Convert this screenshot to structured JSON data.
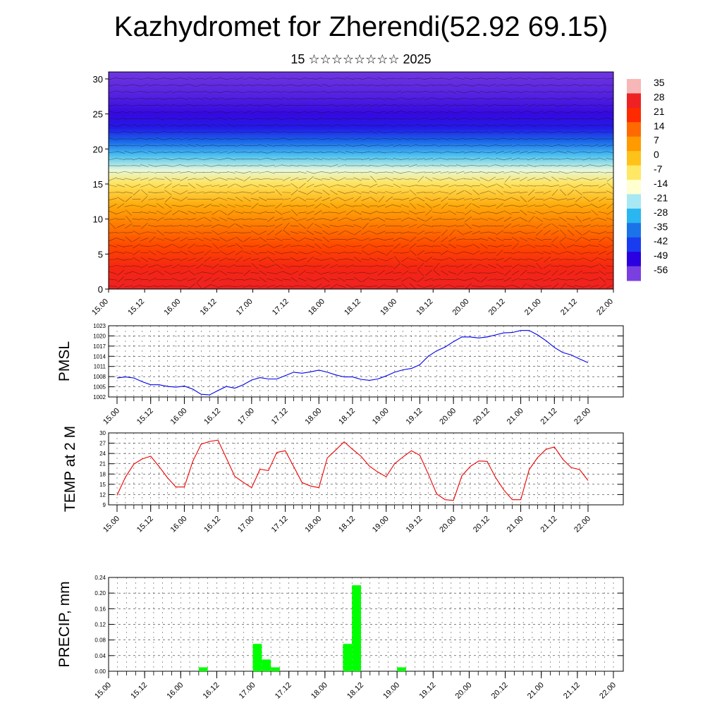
{
  "title": "Kazhydromet for Zherendi(52.92 69.15)",
  "subtitle": "15 ☆☆☆☆☆☆☆☆ 2025",
  "time_labels": [
    "15.00",
    "15.12",
    "16.00",
    "16.12",
    "17.00",
    "17.12",
    "18.00",
    "18.12",
    "19.00",
    "19.12",
    "20.00",
    "20.12",
    "21.00",
    "21.12",
    "22.00"
  ],
  "chart_data": [
    {
      "type": "heatmap",
      "description_free": true,
      "x_ticks": [
        "15.00",
        "15.12",
        "16.00",
        "16.12",
        "17.00",
        "17.12",
        "18.00",
        "18.12",
        "19.00",
        "19.12",
        "20.00",
        "20.12",
        "21.00",
        "21.12",
        "22.00"
      ],
      "y_ticks": [
        0,
        5,
        10,
        15,
        20,
        25,
        30
      ],
      "ylim": [
        0,
        31
      ],
      "colorbar_labels": [
        "35",
        "28",
        "21",
        "14",
        "7",
        "0",
        "-7",
        "-14",
        "-21",
        "-28",
        "-35",
        "-42",
        "-49",
        "-56"
      ],
      "colorbar_colors": [
        "#f7b7b7",
        "#ee2222",
        "#ff2a00",
        "#ff6a00",
        "#ff9a00",
        "#ffc21a",
        "#ffe866",
        "#ffffd0",
        "#a8e8f5",
        "#2ab6f0",
        "#1a73e8",
        "#1a3cf0",
        "#2a00e0",
        "#7a3fe0"
      ],
      "row_profile": [
        {
          "level": 0,
          "value": 28
        },
        {
          "level": 3,
          "value": 25
        },
        {
          "level": 6,
          "value": 18
        },
        {
          "level": 9,
          "value": 12
        },
        {
          "level": 12,
          "value": 4
        },
        {
          "level": 15,
          "value": -6
        },
        {
          "level": 17,
          "value": -16
        },
        {
          "level": 19,
          "value": -26
        },
        {
          "level": 21,
          "value": -36
        },
        {
          "level": 23,
          "value": -46
        },
        {
          "level": 25,
          "value": -50
        },
        {
          "level": 28,
          "value": -53
        },
        {
          "level": 31,
          "value": -55
        }
      ]
    },
    {
      "type": "line",
      "ylabel": "PMSL",
      "ylim": [
        1002,
        1023
      ],
      "y_ticks": [
        "1002",
        "1005",
        "1008",
        "1011",
        "1014",
        "1017",
        "1020",
        "1023"
      ],
      "x_ticks": [
        "15.00",
        "15.12",
        "16.00",
        "16.12",
        "17.00",
        "17.12",
        "18.00",
        "18.12",
        "19.00",
        "19.12",
        "20.00",
        "20.12",
        "21.00",
        "21.12",
        "22.00"
      ],
      "series": [
        {
          "color": "#0000ee",
          "x_step_hours": 3,
          "values": [
            1007.6,
            1007.9,
            1007.6,
            1006.5,
            1005.6,
            1005.6,
            1005.1,
            1004.9,
            1005.2,
            1004.3,
            1002.8,
            1002.6,
            1003.9,
            1005.1,
            1004.6,
            1005.6,
            1007.0,
            1007.7,
            1007.3,
            1007.3,
            1008.3,
            1009.3,
            1009.0,
            1009.4,
            1009.9,
            1009.3,
            1008.5,
            1007.9,
            1007.9,
            1007.2,
            1006.9,
            1007.3,
            1008.2,
            1009.3,
            1010.0,
            1010.4,
            1011.5,
            1014.0,
            1015.6,
            1016.7,
            1018.3,
            1019.7,
            1019.7,
            1019.4,
            1019.7,
            1020.3,
            1020.9,
            1021.0,
            1021.6,
            1021.6,
            1020.3,
            1018.6,
            1016.6,
            1015.1,
            1014.4,
            1013.2,
            1012.1
          ]
        }
      ]
    },
    {
      "type": "line",
      "ylabel": "TEMP at 2 M",
      "ylim": [
        9,
        30
      ],
      "y_ticks": [
        "9",
        "12",
        "15",
        "18",
        "21",
        "24",
        "27",
        "30"
      ],
      "x_ticks": [
        "15.00",
        "15.12",
        "16.00",
        "16.12",
        "17.00",
        "17.12",
        "18.00",
        "18.12",
        "19.00",
        "19.12",
        "20.00",
        "20.12",
        "21.00",
        "21.12",
        "22.00"
      ],
      "series": [
        {
          "color": "#ee0000",
          "x_step_hours": 3,
          "values": [
            11.8,
            17.1,
            20.9,
            22.4,
            23.2,
            20.2,
            16.9,
            14.2,
            14.2,
            21.7,
            26.7,
            27.5,
            27.9,
            22.6,
            17.3,
            15.6,
            14.0,
            19.4,
            19.0,
            24.3,
            24.8,
            20.2,
            15.5,
            14.5,
            14.0,
            22.7,
            25.0,
            27.4,
            25.2,
            23.2,
            20.3,
            18.6,
            17.2,
            21.0,
            23.0,
            24.8,
            23.5,
            18.0,
            12.2,
            10.5,
            10.3,
            17.5,
            20.2,
            21.8,
            21.7,
            17.0,
            13.3,
            10.5,
            10.5,
            19.3,
            22.8,
            25.2,
            25.9,
            22.3,
            19.9,
            19.3,
            16.1
          ]
        }
      ]
    },
    {
      "type": "bar",
      "ylabel": "PRECIP, mm",
      "ylim": [
        0,
        0.24
      ],
      "y_ticks": [
        "0.00",
        "0.04",
        "0.08",
        "0.12",
        "0.16",
        "0.20",
        "0.24"
      ],
      "x_ticks": [
        "15.00",
        "15.12",
        "16.00",
        "16.12",
        "17.00",
        "17.12",
        "18.00",
        "18.12",
        "19.00",
        "19.12",
        "20.00",
        "20.12",
        "21.00",
        "21.12",
        "22.00"
      ],
      "bar_color": "#00ff00",
      "bars": [
        {
          "hour": 30,
          "value": 0.01
        },
        {
          "hour": 48,
          "value": 0.07
        },
        {
          "hour": 51,
          "value": 0.03
        },
        {
          "hour": 54,
          "value": 0.01
        },
        {
          "hour": 78,
          "value": 0.07
        },
        {
          "hour": 81,
          "value": 0.22
        },
        {
          "hour": 96,
          "value": 0.01
        }
      ]
    }
  ]
}
